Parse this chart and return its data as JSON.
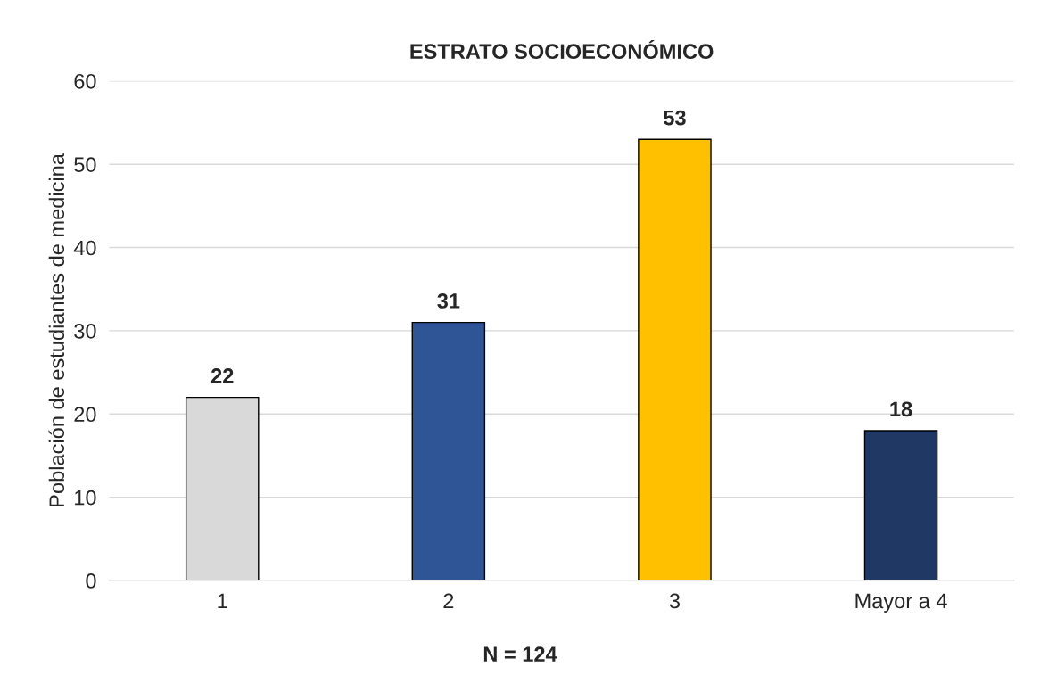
{
  "chart_data": {
    "type": "bar",
    "title": "ESTRATO SOCIOECONÓMICO",
    "ylabel": "Población de estudiantes de medicina",
    "categories": [
      "1",
      "2",
      "3",
      "Mayor a 4"
    ],
    "values": [
      22,
      31,
      53,
      18
    ],
    "colors": [
      "#d9d9d9",
      "#2f5597",
      "#ffc000",
      "#203864"
    ],
    "ylim": [
      0,
      60
    ],
    "yticks": [
      0,
      10,
      20,
      30,
      40,
      50,
      60
    ],
    "grid": "y",
    "data_labels": true,
    "legend": false,
    "annotations": [
      "N = 124"
    ]
  }
}
